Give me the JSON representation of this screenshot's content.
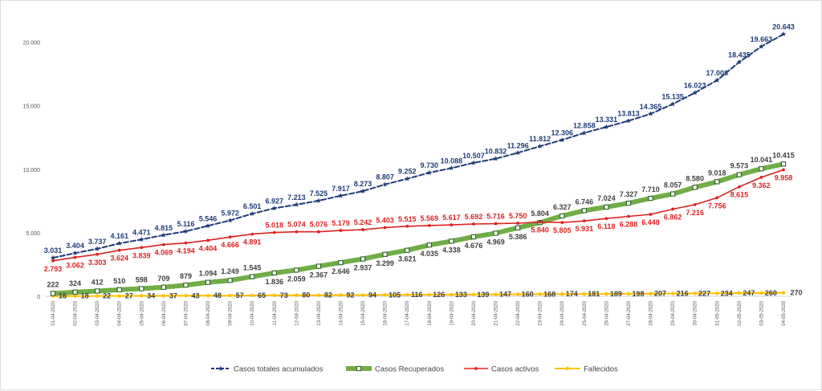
{
  "chart_data": {
    "type": "line",
    "title": "",
    "xlabel": "",
    "ylabel": "",
    "ylim": [
      0,
      22000
    ],
    "yticks": [
      "0",
      "5.000",
      "10.000",
      "15.000",
      "20.000"
    ],
    "ytick_values": [
      0,
      5000,
      10000,
      15000,
      20000
    ],
    "grid": false,
    "legend_position": "bottom",
    "x": [
      "01-04-2020",
      "02-04-2020",
      "03-04-2020",
      "04-04-2020",
      "05-04-2020",
      "06-04-2020",
      "07-04-2020",
      "08-04-2020",
      "09-04-2020",
      "10-04-2020",
      "11-04-2020",
      "12-04-2020",
      "13-04-2020",
      "14-04-2020",
      "15-04-2020",
      "16-04-2020",
      "17-04-2020",
      "18-04-2020",
      "19-04-2020",
      "20-04-2020",
      "21-04-2020",
      "22-04-2020",
      "23-04-2020",
      "24-04-2020",
      "25-04-2020",
      "26-04-2020",
      "27-04-2020",
      "28-04-2020",
      "29-04-2020",
      "30-04-2020",
      "01-05-2020",
      "02-05-2020",
      "03-05-2020",
      "04-05-2020"
    ],
    "series": [
      {
        "name": "Casos totales acumulados",
        "color": "#1f3c78",
        "values": [
          3031,
          3404,
          3737,
          4161,
          4471,
          4815,
          5116,
          5546,
          5972,
          6501,
          6927,
          7213,
          7525,
          7917,
          8273,
          8807,
          9252,
          9730,
          10088,
          10507,
          10832,
          11296,
          11812,
          12306,
          12858,
          13331,
          13813,
          14365,
          15135,
          16023,
          17008,
          18435,
          19663,
          20643
        ],
        "labels": [
          "3.031",
          "3.404",
          "3.737",
          "4.161",
          "4.471",
          "4.815",
          "5.116",
          "5.546",
          "5.972",
          "6.501",
          "6.927",
          "7.213",
          "7.525",
          "7.917",
          "8.273",
          "8.807",
          "9.252",
          "9.730",
          "10.088",
          "10.507",
          "10.832",
          "11.296",
          "11.812",
          "12.306",
          "12.858",
          "13.331",
          "13.813",
          "14.365",
          "15.135",
          "16.023",
          "17.008",
          "18.435",
          "19.663",
          "20.643"
        ]
      },
      {
        "name": "Casos Recuperados",
        "color": "#70ad47",
        "values": [
          222,
          324,
          412,
          510,
          598,
          709,
          879,
          1094,
          1249,
          1545,
          1836,
          2059,
          2367,
          2646,
          2937,
          3299,
          3621,
          4035,
          4338,
          4676,
          4969,
          5386,
          5804,
          6327,
          6746,
          7024,
          7327,
          7710,
          8057,
          8580,
          9018,
          9573,
          10041,
          10415
        ],
        "labels": [
          "222",
          "324",
          "412",
          "510",
          "598",
          "709",
          "879",
          "1.094",
          "1.249",
          "1.545",
          "1.836",
          "2.059",
          "2.367",
          "2.646",
          "2.937",
          "3.299",
          "3.621",
          "4.035",
          "4.338",
          "4.676",
          "4.969",
          "5.386",
          "5.804",
          "6.327",
          "6.746",
          "7.024",
          "7.327",
          "7.710",
          "8.057",
          "8.580",
          "9.018",
          "9.573",
          "10.041",
          "10.415"
        ]
      },
      {
        "name": "Casos activos",
        "color": "#e02020",
        "values": [
          2793,
          3062,
          3303,
          3624,
          3839,
          4069,
          4194,
          4404,
          4666,
          4891,
          5018,
          5074,
          5076,
          5179,
          5242,
          5403,
          5515,
          5569,
          5617,
          5692,
          5716,
          5750,
          5840,
          5805,
          5931,
          6118,
          6288,
          6448,
          6862,
          7216,
          7756,
          8615,
          9362,
          9958
        ],
        "labels": [
          "2.793",
          "3.062",
          "3.303",
          "3.624",
          "3.839",
          "4.069",
          "4.194",
          "4.404",
          "4.666",
          "4.891",
          "5.018",
          "5.074",
          "5.076",
          "5.179",
          "5.242",
          "5.403",
          "5.515",
          "5.569",
          "5.617",
          "5.692",
          "5.716",
          "5.750",
          "5.840",
          "5.805",
          "5.931",
          "6.118",
          "6.288",
          "6.448",
          "6.862",
          "7.216",
          "7.756",
          "8.615",
          "9.362",
          "9.958"
        ]
      },
      {
        "name": "Fallecidos",
        "color": "#ffc000",
        "values": [
          16,
          18,
          22,
          27,
          34,
          37,
          43,
          48,
          57,
          65,
          73,
          80,
          82,
          92,
          94,
          105,
          116,
          126,
          133,
          139,
          147,
          160,
          168,
          174,
          181,
          189,
          198,
          207,
          216,
          227,
          234,
          247,
          260,
          270
        ],
        "labels": [
          "16",
          "18",
          "22",
          "27",
          "34",
          "37",
          "43",
          "48",
          "57",
          "65",
          "73",
          "80",
          "82",
          "92",
          "94",
          "105",
          "116",
          "126",
          "133",
          "139",
          "147",
          "160",
          "168",
          "174",
          "181",
          "189",
          "198",
          "207",
          "216",
          "227",
          "234",
          "247",
          "260",
          "270"
        ]
      }
    ]
  }
}
